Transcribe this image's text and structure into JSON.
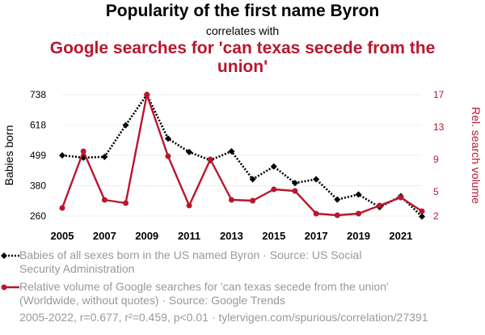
{
  "header": {
    "title": "Popularity of the first name Byron",
    "subtitle": "correlates with",
    "title2": "Google searches for 'can texas secede from the union'"
  },
  "colors": {
    "series1": "#000000",
    "series2": "#b8172e",
    "grid": "#eeeeee",
    "legend_text": "#999999"
  },
  "chart_data": {
    "type": "line",
    "x": [
      2005,
      2006,
      2007,
      2008,
      2009,
      2010,
      2011,
      2012,
      2013,
      2014,
      2015,
      2016,
      2017,
      2018,
      2019,
      2020,
      2021,
      2022
    ],
    "xticks": [
      "2005",
      "2007",
      "2009",
      "2011",
      "2013",
      "2015",
      "2017",
      "2019",
      "2021"
    ],
    "xlim": [
      2005,
      2022
    ],
    "y_left": {
      "label": "Babies born",
      "ticks": [
        "260",
        "380",
        "499",
        "618",
        "738"
      ],
      "lim": [
        260,
        738
      ]
    },
    "y_right": {
      "label": "Rel. search volume",
      "ticks": [
        "2",
        "5",
        "9",
        "13",
        "17"
      ],
      "lim": [
        2,
        17
      ]
    },
    "grid": true,
    "series": [
      {
        "name": "Babies of all sexes born in the US named Byron",
        "axis": "left",
        "style": "dotted-diamond",
        "values": [
          499,
          490,
          493,
          618,
          738,
          565,
          512,
          480,
          515,
          405,
          455,
          390,
          405,
          325,
          345,
          295,
          338,
          258
        ]
      },
      {
        "name": "Relative volume of Google searches for 'can texas secede from the union'",
        "axis": "right",
        "style": "solid-circle",
        "values": [
          3,
          10,
          4,
          3.6,
          17,
          9.4,
          3.3,
          9,
          4,
          3.9,
          5.3,
          5.1,
          2.3,
          2.1,
          2.3,
          3.3,
          4.3,
          2.6
        ]
      }
    ]
  },
  "legend": {
    "item1": "Babies of all sexes born in the US named Byron · Source: US Social Security Administration",
    "item2": "Relative volume of Google searches for 'can texas secede from the union' (Worldwide, without quotes) · Source: Google Trends"
  },
  "footer": "2005-2022, r=0.677, r²=0.459, p<0.01 · tylervigen.com/spurious/correlation/27391"
}
